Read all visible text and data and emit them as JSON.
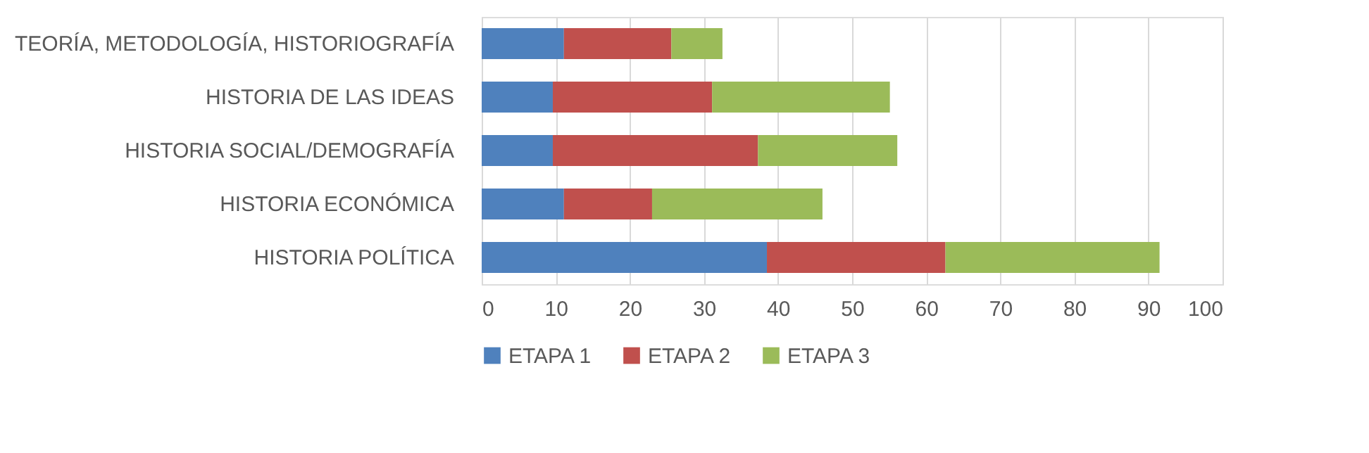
{
  "chart_data": {
    "type": "bar",
    "orientation": "horizontal",
    "stacked": true,
    "categories": [
      "TEORÍA, METODOLOGÍA, HISTORIOGRAFÍA",
      "HISTORIA DE LAS  IDEAS",
      "HISTORIA SOCIAL/DEMOGRAFÍA",
      "HISTORIA ECONÓMICA",
      "HISTORIA POLÍTICA"
    ],
    "series": [
      {
        "name": "ETAPA 1",
        "color": "#4f81bd",
        "values": [
          11.1,
          9.6,
          9.6,
          11.1,
          38.5
        ]
      },
      {
        "name": "ETAPA 2",
        "color": "#c0504d",
        "values": [
          14.5,
          21.5,
          27.7,
          11.9,
          24.1
        ]
      },
      {
        "name": "ETAPA 3",
        "color": "#9bbb59",
        "values": [
          6.9,
          24.0,
          18.8,
          23.0,
          28.9
        ]
      }
    ],
    "xlim": [
      0,
      100
    ],
    "xticks": [
      0,
      10,
      20,
      30,
      40,
      50,
      60,
      70,
      80,
      90,
      100
    ],
    "grid": "x",
    "legend": "bottom"
  }
}
